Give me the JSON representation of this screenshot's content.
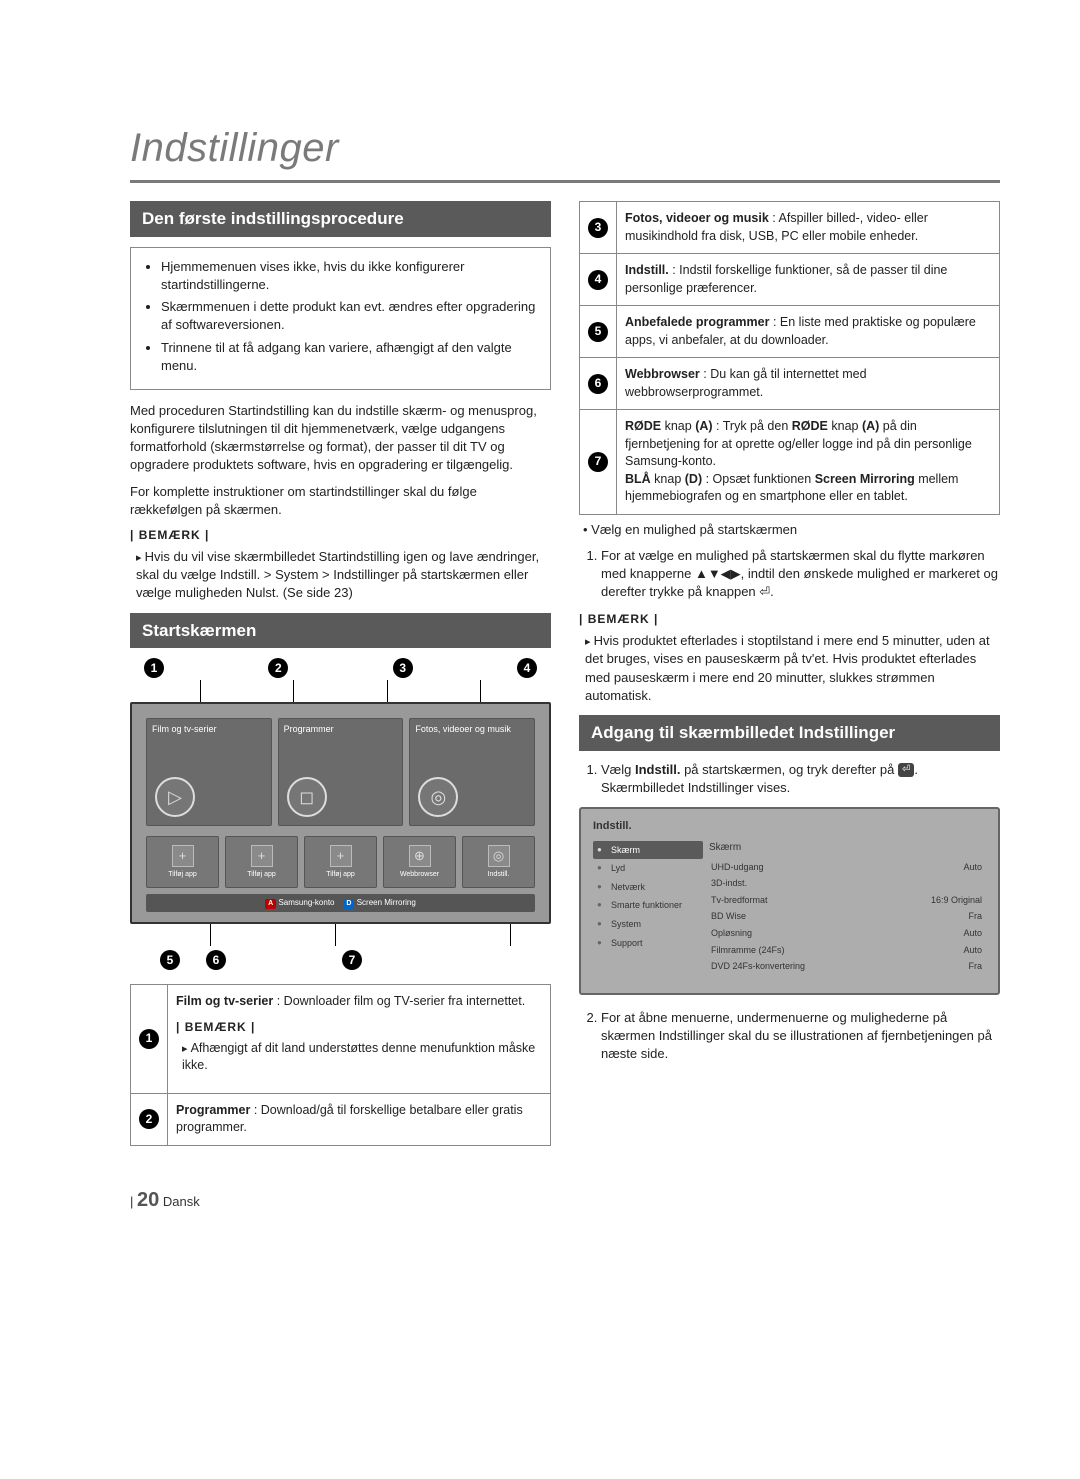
{
  "page": {
    "title": "Indstillinger",
    "number": "20",
    "lang": "Dansk"
  },
  "sec1": {
    "header": "Den første indstillingsprocedure",
    "notice": [
      "Hjemmemenuen vises ikke, hvis du ikke konfigurerer startindstillingerne.",
      "Skærmmenuen i dette produkt kan evt. ændres efter opgradering af softwareversionen.",
      "Trinnene til at få adgang kan variere, afhængigt af den valgte menu."
    ],
    "para1": "Med proceduren Startindstilling kan du indstille skærm- og menusprog, konfigurere tilslutningen til dit hjemmenetværk, vælge udgangens formatforhold (skærmstørrelse og format), der passer til dit TV og opgradere produktets software, hvis en opgradering er tilgængelig.",
    "para2": "For komplette instruktioner om startindstillinger skal du følge rækkefølgen på skærmen.",
    "note_label": "BEMÆRK",
    "note_item": "Hvis du vil vise skærmbilledet Startindstilling igen og lave ændringer, skal du vælge Indstill. > System > Indstillinger på startskærmen eller vælge muligheden Nulst. (Se side 23)"
  },
  "sec2": {
    "header": "Startskærmen",
    "callouts_top": [
      "1",
      "2",
      "3",
      "4"
    ],
    "callouts_bottom": [
      "5",
      "6",
      "7"
    ],
    "tiles": [
      {
        "label": "Film og\ntv-serier",
        "icon": "▷"
      },
      {
        "label": "Programmer",
        "icon": "◻"
      },
      {
        "label": "Fotos,\nvideoer og\nmusik",
        "icon": "◎"
      }
    ],
    "row2": [
      {
        "label": "Tilføj app",
        "icon": "+"
      },
      {
        "label": "Tilføj app",
        "icon": "+"
      },
      {
        "label": "Tilføj app",
        "icon": "+"
      },
      {
        "label": "Webbrowser",
        "icon": "⊕"
      },
      {
        "label": "Indstill.",
        "icon": "◎"
      }
    ],
    "bottom_bar": {
      "a": "Samsung-konto",
      "d": "Screen Mirroring"
    },
    "desc": [
      {
        "n": "1",
        "html": "<b>Film og tv-serier</b> : Downloader film og TV-serier fra internettet.",
        "note_label": "BEMÆRK",
        "note": "Afhængigt af dit land understøttes denne menufunktion måske ikke."
      },
      {
        "n": "2",
        "html": "<b>Programmer</b> : Download/gå til forskellige betalbare eller gratis programmer."
      }
    ]
  },
  "rightTable": [
    {
      "n": "3",
      "html": "<b>Fotos, videoer og musik</b> : Afspiller billed-, video- eller musikindhold fra disk, USB, PC eller mobile enheder."
    },
    {
      "n": "4",
      "html": "<b>Indstill.</b> : Indstil forskellige funktioner, så de passer til dine personlige præferencer."
    },
    {
      "n": "5",
      "html": "<b>Anbefalede programmer</b> : En liste med praktiske og populære apps, vi anbefaler, at du downloader."
    },
    {
      "n": "6",
      "html": "<b>Webbrowser</b> : Du kan gå til internettet med webbrowserprogrammet."
    },
    {
      "n": "7",
      "html": "<b>RØDE</b> knap <b>(A)</b> : Tryk på den <b>RØDE</b> knap <b>(A)</b> på din fjernbetjening for at oprette og/eller logge ind på din personlige Samsung-konto.<br><b>BLÅ</b> knap <b>(D)</b> : Opsæt funktionen <b>Screen Mirroring</b> mellem hjemmebiografen og en smartphone eller en tablet."
    }
  ],
  "rightBody": {
    "bullet": "Vælg en mulighed på startskærmen",
    "step1": "For at vælge en mulighed på startskærmen skal du flytte markøren med knapperne ▲▼◀▶, indtil den ønskede mulighed er markeret og derefter trykke på knappen ⏎.",
    "note_label": "BEMÆRK",
    "note1": "Hvis produktet efterlades i stoptilstand i mere end 5 minutter, uden at det bruges, vises en pauseskærm på tv'et. Hvis produktet efterlades med pauseskærm i mere end 20 minutter, slukkes strømmen automatisk."
  },
  "sec3": {
    "header": "Adgang til skærmbilledet Indstillinger",
    "step1_a": "Vælg ",
    "step1_b": "Indstill.",
    "step1_c": " på startskærmen, og tryk derefter på ",
    "step1_d": ". Skærmbilledet Indstillinger vises.",
    "settings": {
      "title": "Indstill.",
      "menu": [
        "Skærm",
        "Lyd",
        "Netværk",
        "Smarte funktioner",
        "System",
        "Support"
      ],
      "selected": 0,
      "panel_title": "Skærm",
      "rows": [
        [
          "UHD-udgang",
          "Auto"
        ],
        [
          "3D-indst.",
          ""
        ],
        [
          "Tv-bredformat",
          "16:9 Original"
        ],
        [
          "BD Wise",
          "Fra"
        ],
        [
          "Opløsning",
          "Auto"
        ],
        [
          "Filmramme (24Fs)",
          "Auto"
        ],
        [
          "DVD 24Fs-konvertering",
          "Fra"
        ]
      ]
    },
    "step2": "For at åbne menuerne, undermenuerne og mulighederne på skærmen Indstillinger skal du se illustrationen af fjernbetjeningen på næste side."
  }
}
